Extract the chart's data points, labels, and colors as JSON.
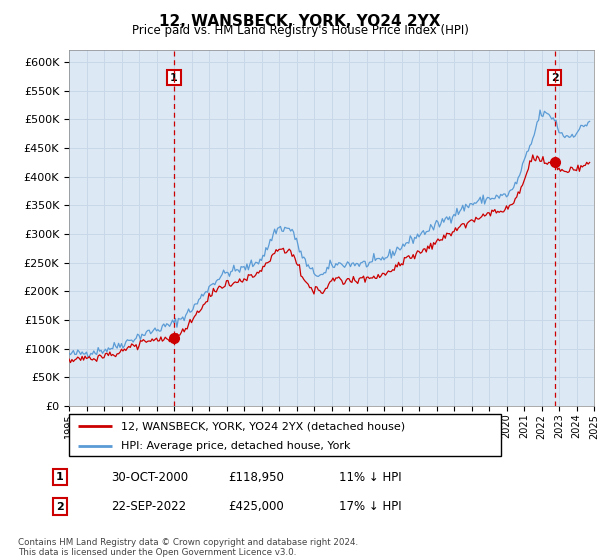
{
  "title": "12, WANSBECK, YORK, YO24 2YX",
  "subtitle": "Price paid vs. HM Land Registry's House Price Index (HPI)",
  "ylabel_ticks": [
    "£0",
    "£50K",
    "£100K",
    "£150K",
    "£200K",
    "£250K",
    "£300K",
    "£350K",
    "£400K",
    "£450K",
    "£500K",
    "£550K",
    "£600K"
  ],
  "ytick_values": [
    0,
    50000,
    100000,
    150000,
    200000,
    250000,
    300000,
    350000,
    400000,
    450000,
    500000,
    550000,
    600000
  ],
  "ylim": [
    0,
    620000
  ],
  "x_start_year": 1995,
  "x_end_year": 2025,
  "hpi_color": "#5b9bd5",
  "price_color": "#cc0000",
  "annotation_color": "#cc0000",
  "grid_color": "#c8d8e8",
  "chart_bg_color": "#dce9f5",
  "background_color": "#ffffff",
  "legend_label_price": "12, WANSBECK, YORK, YO24 2YX (detached house)",
  "legend_label_hpi": "HPI: Average price, detached house, York",
  "transaction1_label": "1",
  "transaction1_date": "30-OCT-2000",
  "transaction1_price": "£118,950",
  "transaction1_hpi": "11% ↓ HPI",
  "transaction1_year": 2001.0,
  "transaction1_value": 118950,
  "transaction2_label": "2",
  "transaction2_date": "22-SEP-2022",
  "transaction2_price": "£425,000",
  "transaction2_hpi": "17% ↓ HPI",
  "transaction2_year": 2022.75,
  "transaction2_value": 425000,
  "footer": "Contains HM Land Registry data © Crown copyright and database right 2024.\nThis data is licensed under the Open Government Licence v3.0."
}
